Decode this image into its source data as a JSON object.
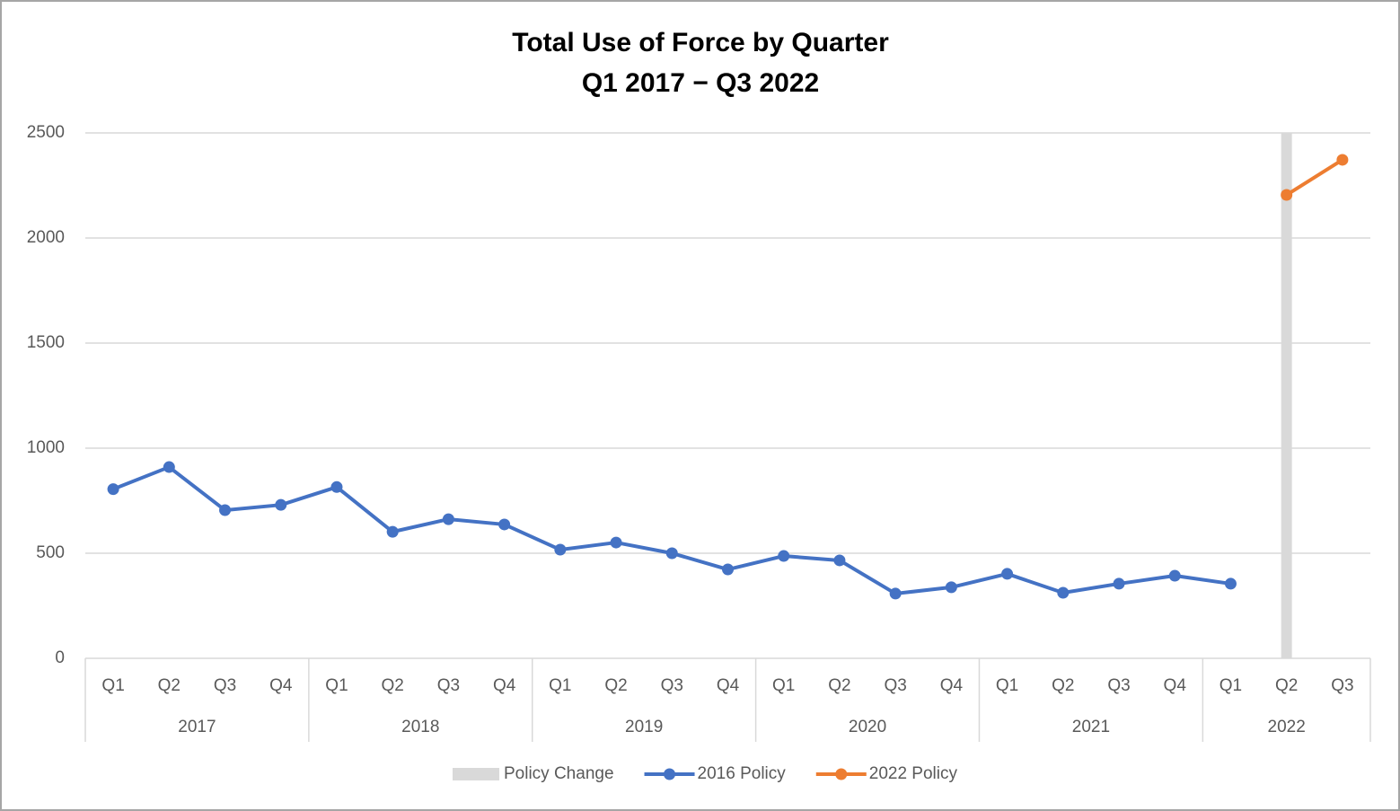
{
  "chart_data": {
    "type": "line",
    "title": "Total Use of Force by Quarter",
    "subtitle": "Q1 2017 − Q3 2022",
    "groups": [
      {
        "label": "2017",
        "categories": [
          "Q1",
          "Q2",
          "Q3",
          "Q4"
        ]
      },
      {
        "label": "2018",
        "categories": [
          "Q1",
          "Q2",
          "Q3",
          "Q4"
        ]
      },
      {
        "label": "2019",
        "categories": [
          "Q1",
          "Q2",
          "Q3",
          "Q4"
        ]
      },
      {
        "label": "2020",
        "categories": [
          "Q1",
          "Q2",
          "Q3",
          "Q4"
        ]
      },
      {
        "label": "2021",
        "categories": [
          "Q1",
          "Q2",
          "Q3",
          "Q4"
        ]
      },
      {
        "label": "2022",
        "categories": [
          "Q1",
          "Q2",
          "Q3"
        ]
      }
    ],
    "series": [
      {
        "name": "Policy Change",
        "type": "bar",
        "color": "#d9d9d9",
        "values": [
          null,
          null,
          null,
          null,
          null,
          null,
          null,
          null,
          null,
          null,
          null,
          null,
          null,
          null,
          null,
          null,
          null,
          null,
          null,
          null,
          null,
          2500,
          null
        ]
      },
      {
        "name": "2016 Policy",
        "type": "line",
        "color": "#4472c4",
        "values": [
          805,
          910,
          705,
          730,
          815,
          602,
          662,
          637,
          517,
          551,
          500,
          423,
          487,
          466,
          308,
          338,
          402,
          312,
          355,
          393,
          355,
          null,
          null
        ]
      },
      {
        "name": "2022 Policy",
        "type": "line",
        "color": "#ed7d31",
        "values": [
          null,
          null,
          null,
          null,
          null,
          null,
          null,
          null,
          null,
          null,
          null,
          null,
          null,
          null,
          null,
          null,
          null,
          null,
          null,
          null,
          null,
          2205,
          2372
        ]
      }
    ],
    "ylim": [
      0,
      2500
    ],
    "yticks": [
      0,
      500,
      1000,
      1500,
      2000,
      2500
    ],
    "grid": true,
    "legend": "bottom"
  }
}
